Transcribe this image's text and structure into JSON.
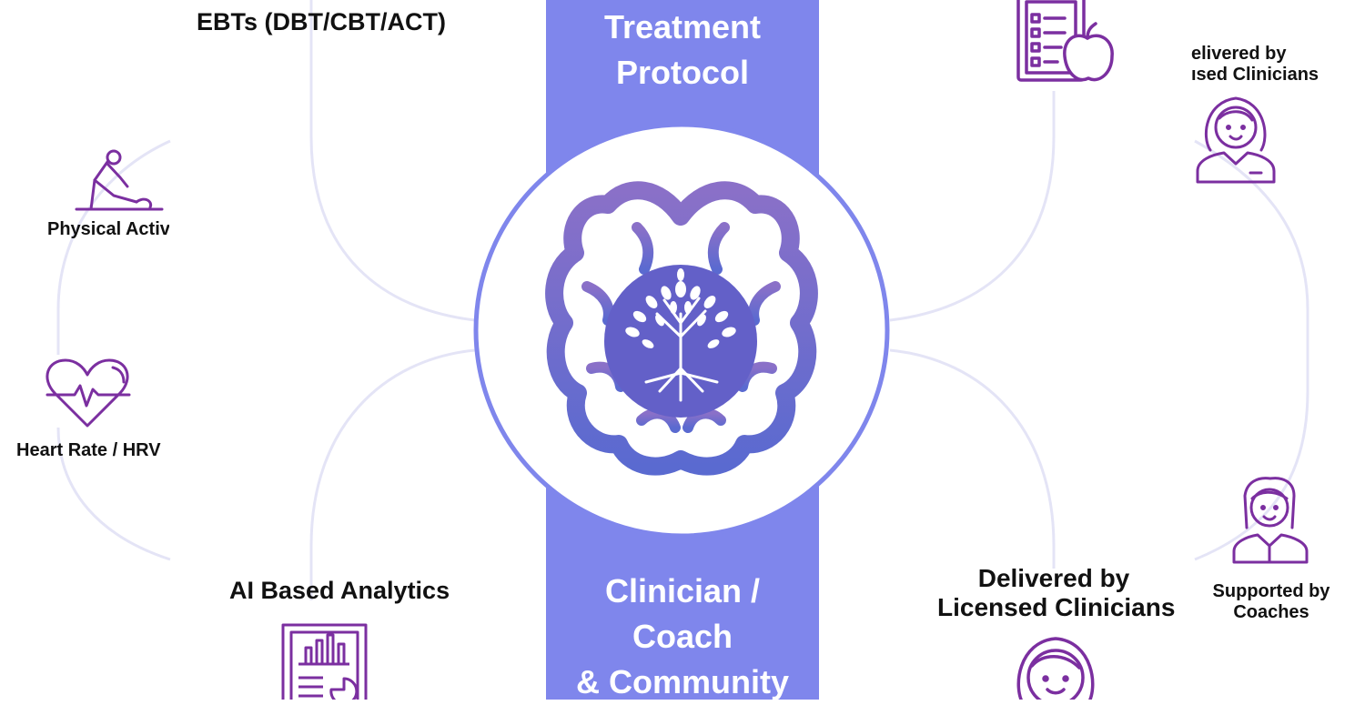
{
  "center": {
    "top_label_line1": "Treatment",
    "top_label_line2": "Protocol",
    "bottom_label_line1": "Clinician /",
    "bottom_label_line2": "Coach",
    "bottom_label_line3": "& Community",
    "icon": "brain-tree-icon"
  },
  "left": {
    "top_label": "EBTs (DBT/CBT/ACT)",
    "bottom_label": "AI Based Analytics",
    "report_icon": "report-chart-icon",
    "outer": {
      "physical_label": "Physical Activ",
      "physical_icon": "stretching-person-icon",
      "heart_label": "Heart Rate / HRV",
      "heart_icon": "heart-pulse-icon"
    }
  },
  "right": {
    "top_icon": "checklist-apple-icon",
    "bottom_label_line1": "Delivered by",
    "bottom_label_line2": "Licensed Clinicians",
    "bottom_icon": "female-clinician-icon",
    "outer": {
      "top_label_line1": "elivered by",
      "top_label_line2": "ısed Clinicians",
      "top_icon": "female-clinician-icon",
      "bottom_label_line1": "Supported by",
      "bottom_label_line2": "Coaches",
      "bottom_icon": "female-coach-icon"
    }
  },
  "colors": {
    "band": "#7f86ec",
    "circle_ring": "#7f86ec",
    "brain_top": "#8a70c8",
    "brain_bottom": "#5a6ad0",
    "icon_purple": "#7b2fa0",
    "connector": "#e4e4f6"
  }
}
